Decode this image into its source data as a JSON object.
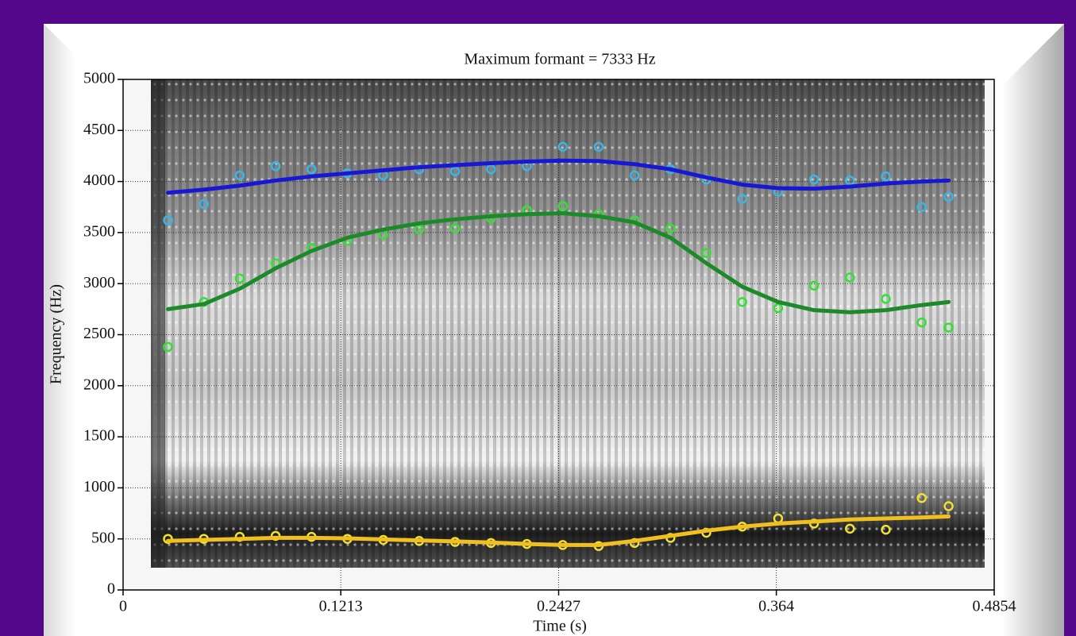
{
  "chart_data": {
    "type": "line",
    "title": "Maximum formant = 7333 Hz",
    "x_label": "Time (s)",
    "y_label": "Frequency (Hz)",
    "x": [
      0.025,
      0.045,
      0.065,
      0.085,
      0.105,
      0.125,
      0.145,
      0.165,
      0.185,
      0.205,
      0.225,
      0.245,
      0.265,
      0.285,
      0.305,
      0.325,
      0.345,
      0.365,
      0.385,
      0.405,
      0.425,
      0.445,
      0.46
    ],
    "xlim": [
      0,
      0.4854
    ],
    "xticks": [
      0,
      0.1213,
      0.2427,
      0.364,
      0.4854
    ],
    "ylim": [
      0,
      5000
    ],
    "yticks": [
      0,
      500,
      1000,
      1500,
      2000,
      2500,
      3000,
      3500,
      4000,
      4500,
      5000
    ],
    "grid": true,
    "series": [
      {
        "mode": "markers",
        "color": "#3cb4e6",
        "values": [
          3620,
          3780,
          4060,
          4150,
          4120,
          4080,
          4060,
          4120,
          4100,
          4120,
          4150,
          4340,
          4340,
          4060,
          4120,
          4020,
          3830,
          3900,
          4020,
          4010,
          4050,
          3750,
          3850
        ]
      },
      {
        "mode": "line",
        "color": "#1717d4",
        "values": [
          3890,
          3920,
          3960,
          4010,
          4050,
          4080,
          4110,
          4140,
          4160,
          4180,
          4195,
          4205,
          4200,
          4170,
          4120,
          4040,
          3970,
          3935,
          3930,
          3950,
          3980,
          4000,
          4010
        ]
      },
      {
        "mode": "markers",
        "color": "#35e035",
        "values": [
          2380,
          2820,
          3050,
          3200,
          3350,
          3420,
          3480,
          3530,
          3540,
          3640,
          3720,
          3760,
          3680,
          3620,
          3540,
          3300,
          2820,
          2760,
          2980,
          3060,
          2850,
          2620,
          2570
        ]
      },
      {
        "mode": "line",
        "color": "#1d8a2a",
        "values": [
          2750,
          2800,
          2950,
          3150,
          3320,
          3450,
          3530,
          3590,
          3630,
          3660,
          3680,
          3690,
          3660,
          3600,
          3450,
          3200,
          2970,
          2820,
          2740,
          2720,
          2740,
          2790,
          2820
        ]
      },
      {
        "mode": "markers",
        "color": "#f2e033",
        "values": [
          500,
          500,
          520,
          530,
          520,
          500,
          490,
          480,
          470,
          460,
          450,
          440,
          430,
          460,
          510,
          560,
          620,
          700,
          650,
          600,
          590,
          900,
          820
        ]
      },
      {
        "mode": "line",
        "color": "#f0c020",
        "values": [
          480,
          490,
          500,
          510,
          510,
          505,
          495,
          485,
          475,
          465,
          450,
          440,
          440,
          480,
          530,
          580,
          620,
          650,
          670,
          690,
          700,
          710,
          720
        ]
      }
    ]
  }
}
